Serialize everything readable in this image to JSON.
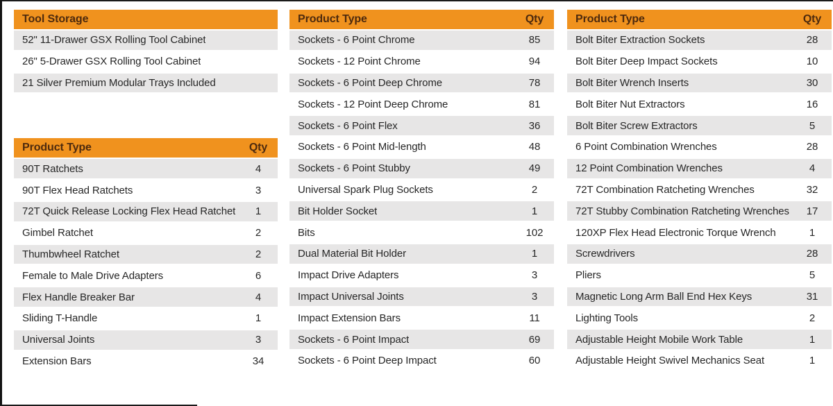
{
  "colors": {
    "header_bg": "#F0921E",
    "header_text": "#4D2A0E",
    "row_alt_bg": "#E7E6E6",
    "row_text": "#262626",
    "border": "#1A1A1A"
  },
  "tables": [
    {
      "title": "Tool Storage",
      "qty_label": null,
      "rows": [
        {
          "name": "52\" 11-Drawer GSX Rolling Tool Cabinet"
        },
        {
          "name": "26\" 5-Drawer GSX Rolling Tool Cabinet"
        },
        {
          "name": "21 Silver Premium Modular Trays Included"
        }
      ]
    },
    {
      "title": "Product Type",
      "qty_label": "Qty",
      "rows": [
        {
          "name": "90T Ratchets",
          "qty": "4"
        },
        {
          "name": "90T Flex Head Ratchets",
          "qty": "3"
        },
        {
          "name": "72T Quick Release Locking Flex Head Ratchet",
          "qty": "1"
        },
        {
          "name": "Gimbel Ratchet",
          "qty": "2"
        },
        {
          "name": "Thumbwheel Ratchet",
          "qty": "2"
        },
        {
          "name": "Female to Male Drive Adapters",
          "qty": "6"
        },
        {
          "name": "Flex Handle Breaker Bar",
          "qty": "4"
        },
        {
          "name": "Sliding T-Handle",
          "qty": "1"
        },
        {
          "name": "Universal Joints",
          "qty": "3"
        },
        {
          "name": "Extension Bars",
          "qty": "34"
        }
      ]
    },
    {
      "title": "Product Type",
      "qty_label": "Qty",
      "rows": [
        {
          "name": "Sockets - 6 Point Chrome",
          "qty": "85"
        },
        {
          "name": "Sockets - 12 Point Chrome",
          "qty": "94"
        },
        {
          "name": "Sockets - 6 Point Deep Chrome",
          "qty": "78"
        },
        {
          "name": "Sockets - 12 Point Deep Chrome",
          "qty": "81"
        },
        {
          "name": "Sockets - 6 Point Flex",
          "qty": "36"
        },
        {
          "name": "Sockets - 6 Point Mid-length",
          "qty": "48"
        },
        {
          "name": "Sockets - 6 Point Stubby",
          "qty": "49"
        },
        {
          "name": "Universal Spark Plug Sockets",
          "qty": "2"
        },
        {
          "name": "Bit Holder Socket",
          "qty": "1"
        },
        {
          "name": "Bits",
          "qty": "102"
        },
        {
          "name": "Dual Material Bit Holder",
          "qty": "1"
        },
        {
          "name": "Impact Drive Adapters",
          "qty": "3"
        },
        {
          "name": "Impact Universal Joints",
          "qty": "3"
        },
        {
          "name": "Impact Extension Bars",
          "qty": "11"
        },
        {
          "name": "Sockets - 6 Point Impact",
          "qty": "69"
        },
        {
          "name": "Sockets - 6 Point Deep Impact",
          "qty": "60"
        }
      ]
    },
    {
      "title": "Product Type",
      "qty_label": "Qty",
      "rows": [
        {
          "name": "Bolt Biter Extraction Sockets",
          "qty": "28"
        },
        {
          "name": "Bolt Biter Deep Impact Sockets",
          "qty": "10"
        },
        {
          "name": "Bolt Biter Wrench Inserts",
          "qty": "30"
        },
        {
          "name": "Bolt Biter Nut Extractors",
          "qty": "16"
        },
        {
          "name": "Bolt Biter Screw Extractors",
          "qty": "5"
        },
        {
          "name": "6 Point Combination Wrenches",
          "qty": "28"
        },
        {
          "name": "12 Point Combination Wrenches",
          "qty": "4"
        },
        {
          "name": "72T Combination Ratcheting Wrenches",
          "qty": "32"
        },
        {
          "name": "72T Stubby Combination Ratcheting Wrenches",
          "qty": "17"
        },
        {
          "name": "120XP Flex Head Electronic Torque Wrench",
          "qty": "1"
        },
        {
          "name": "Screwdrivers",
          "qty": "28"
        },
        {
          "name": "Pliers",
          "qty": "5"
        },
        {
          "name": "Magnetic Long Arm Ball End Hex Keys",
          "qty": "31"
        },
        {
          "name": "Lighting Tools",
          "qty": "2"
        },
        {
          "name": "Adjustable Height Mobile Work Table",
          "qty": "1"
        },
        {
          "name": "Adjustable Height Swivel Mechanics Seat",
          "qty": "1"
        }
      ]
    }
  ]
}
